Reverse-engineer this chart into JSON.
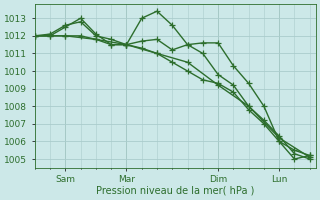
{
  "background_color": "#cce8e8",
  "grid_color": "#aacccc",
  "line_color": "#2d6e2d",
  "xlabel": "Pression niveau de la mer( hPa )",
  "ylim": [
    1004.5,
    1013.8
  ],
  "yticks": [
    1005,
    1006,
    1007,
    1008,
    1009,
    1010,
    1011,
    1012,
    1013
  ],
  "x_tick_labels": [
    "Sam",
    "Mar",
    "Dim",
    "Lun"
  ],
  "x_tick_positions": [
    1,
    3,
    6,
    8
  ],
  "xlim": [
    0,
    9.2
  ],
  "lines": [
    {
      "x": [
        0,
        1,
        2,
        3,
        4,
        5,
        6,
        7,
        8,
        9
      ],
      "y": [
        1012.0,
        1012.0,
        1011.8,
        1011.5,
        1011.0,
        1010.5,
        1009.2,
        1008.0,
        1006.2,
        1005.1
      ]
    },
    {
      "x": [
        0,
        0.5,
        1,
        1.5,
        2,
        2.5,
        3,
        3.5,
        4,
        4.5,
        5,
        5.5,
        6,
        6.5,
        7,
        7.5,
        8,
        8.5,
        9
      ],
      "y": [
        1012.0,
        1012.1,
        1012.6,
        1012.8,
        1012.0,
        1011.8,
        1011.5,
        1013.0,
        1013.4,
        1012.6,
        1011.5,
        1011.6,
        1011.6,
        1010.3,
        1009.3,
        1008.0,
        1006.0,
        1005.0,
        1005.2
      ]
    },
    {
      "x": [
        0,
        0.5,
        1,
        1.5,
        2,
        2.5,
        3,
        3.5,
        4,
        4.5,
        5,
        5.5,
        6,
        6.5,
        7,
        7.5,
        8,
        8.5,
        9
      ],
      "y": [
        1012.0,
        1012.0,
        1012.5,
        1013.0,
        1012.1,
        1011.5,
        1011.5,
        1011.7,
        1011.8,
        1011.2,
        1011.5,
        1011.0,
        1009.8,
        1009.2,
        1008.0,
        1007.2,
        1006.3,
        1005.3,
        1005.0
      ]
    },
    {
      "x": [
        0,
        0.5,
        1,
        1.5,
        2,
        2.5,
        3,
        3.5,
        4,
        4.5,
        5,
        5.5,
        6,
        6.5,
        7,
        7.5,
        8,
        8.5,
        9
      ],
      "y": [
        1012.0,
        1012.0,
        1012.0,
        1012.0,
        1011.8,
        1011.5,
        1011.5,
        1011.3,
        1011.0,
        1010.5,
        1010.0,
        1009.5,
        1009.3,
        1008.8,
        1007.8,
        1007.0,
        1006.0,
        1005.5,
        1005.2
      ]
    }
  ],
  "marker": "+",
  "markersize": 4,
  "linewidth": 1.0
}
